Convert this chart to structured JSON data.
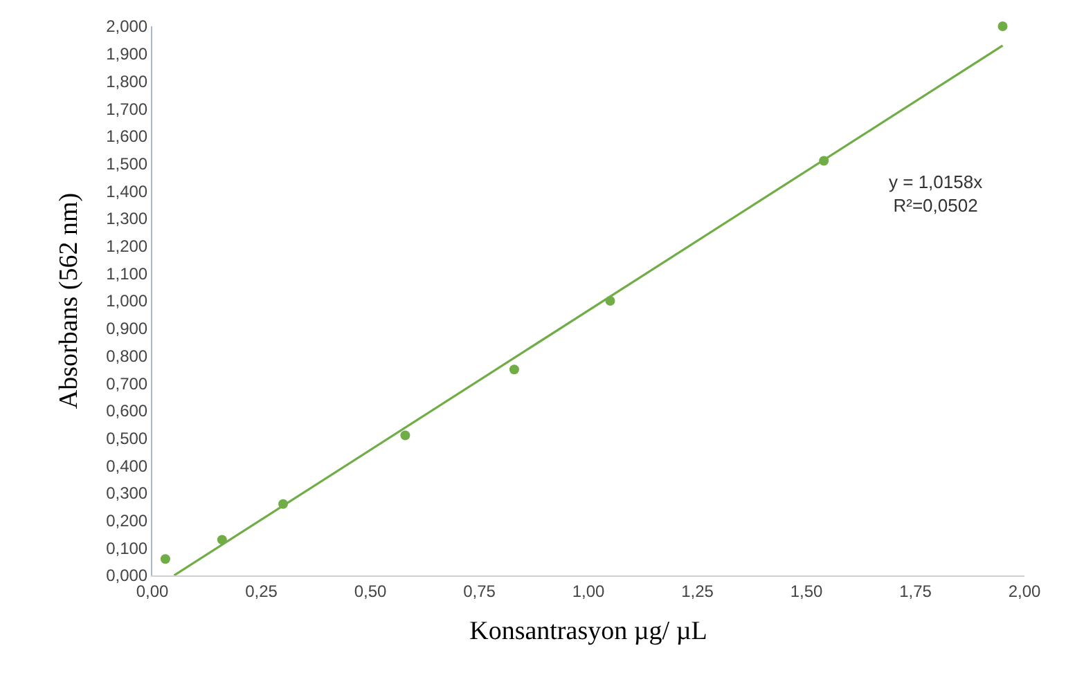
{
  "chart_data": {
    "type": "scatter",
    "xlabel": "Konsantrasyon µg/ µL",
    "ylabel": "Absorbans (562 nm)",
    "annotations": [
      "y = 1,0158x\nR²=0,0502"
    ],
    "series": [
      {
        "color": "#70ad47",
        "x": [
          0.03,
          0.16,
          0.3,
          0.58,
          0.83,
          1.05,
          1.54,
          1.95
        ],
        "values": [
          0.06,
          0.13,
          0.26,
          0.51,
          0.75,
          1.0,
          1.51,
          2.0
        ],
        "marker": "circle"
      },
      {
        "type": "line",
        "color": "#70ad47",
        "x": [
          0.05,
          1.95
        ],
        "values": [
          0.0,
          1.93
        ],
        "line_style": "solid",
        "marker": "none"
      }
    ],
    "xlim": [
      0,
      2
    ],
    "ylim": [
      0,
      2
    ],
    "xticks": [
      {
        "value": 0,
        "label": "0,00"
      },
      {
        "value": 0.25,
        "label": "0,25"
      },
      {
        "value": 0.5,
        "label": "0,50"
      },
      {
        "value": 0.75,
        "label": "0,75"
      },
      {
        "value": 1,
        "label": "1,00"
      },
      {
        "value": 1.25,
        "label": "1,25"
      },
      {
        "value": 1.5,
        "label": "1,50"
      },
      {
        "value": 1.75,
        "label": "1,75"
      },
      {
        "value": 2,
        "label": "2,00"
      }
    ],
    "yticks": [
      {
        "value": 0,
        "label": "0,000"
      },
      {
        "value": 0.1,
        "label": "0,100"
      },
      {
        "value": 0.2,
        "label": "0,200"
      },
      {
        "value": 0.3,
        "label": "0,300"
      },
      {
        "value": 0.4,
        "label": "0,400"
      },
      {
        "value": 0.5,
        "label": "0,500"
      },
      {
        "value": 0.6,
        "label": "0,600"
      },
      {
        "value": 0.7,
        "label": "0,700"
      },
      {
        "value": 0.8,
        "label": "0,800"
      },
      {
        "value": 0.9,
        "label": "0,900"
      },
      {
        "value": 1,
        "label": "1,000"
      },
      {
        "value": 1.1,
        "label": "1,100"
      },
      {
        "value": 1.2,
        "label": "1,200"
      },
      {
        "value": 1.3,
        "label": "1,300"
      },
      {
        "value": 1.4,
        "label": "1,400"
      },
      {
        "value": 1.5,
        "label": "1,500"
      },
      {
        "value": 1.6,
        "label": "1,600"
      },
      {
        "value": 1.7,
        "label": "1,700"
      },
      {
        "value": 1.8,
        "label": "1,800"
      },
      {
        "value": 1.9,
        "label": "1,900"
      },
      {
        "value": 2,
        "label": "2,000"
      }
    ]
  }
}
